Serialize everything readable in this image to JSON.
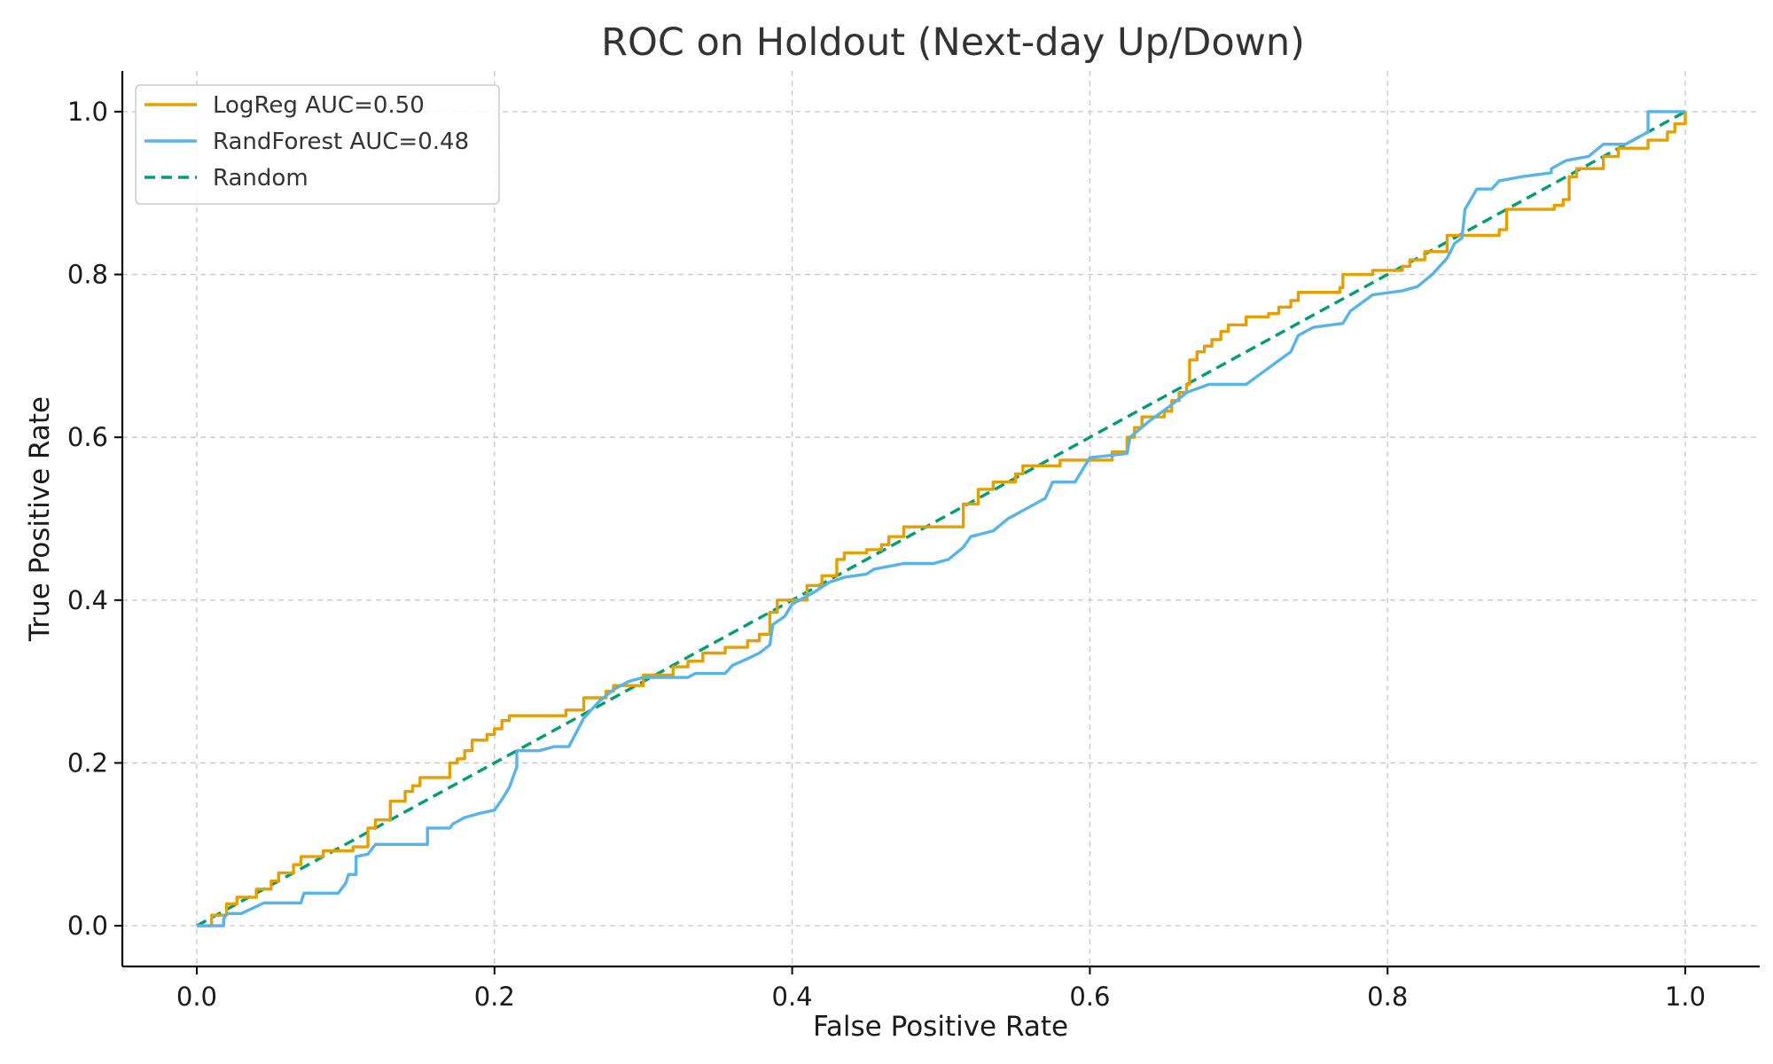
{
  "chart_data": {
    "type": "line",
    "title": "ROC on Holdout (Next-day Up/Down)",
    "xlabel": "False Positive Rate",
    "ylabel": "True Positive Rate",
    "xlim": [
      -0.05,
      1.05
    ],
    "ylim": [
      -0.05,
      1.05
    ],
    "x_ticks": [
      "0.0",
      "0.2",
      "0.4",
      "0.6",
      "0.8",
      "1.0"
    ],
    "y_ticks": [
      "0.0",
      "0.2",
      "0.4",
      "0.6",
      "0.8",
      "1.0"
    ],
    "grid": true,
    "legend_position": "top-left",
    "series": [
      {
        "name": "LogReg AUC=0.50",
        "color": "#E69F00",
        "style": "solid",
        "points": [
          [
            0,
            0
          ],
          [
            0.01,
            0
          ],
          [
            0.01,
            0.013
          ],
          [
            0.02,
            0.013
          ],
          [
            0.02,
            0.027
          ],
          [
            0.027,
            0.027
          ],
          [
            0.027,
            0.035
          ],
          [
            0.04,
            0.035
          ],
          [
            0.04,
            0.045
          ],
          [
            0.05,
            0.045
          ],
          [
            0.05,
            0.055
          ],
          [
            0.055,
            0.055
          ],
          [
            0.055,
            0.065
          ],
          [
            0.065,
            0.065
          ],
          [
            0.065,
            0.075
          ],
          [
            0.07,
            0.075
          ],
          [
            0.07,
            0.085
          ],
          [
            0.085,
            0.085
          ],
          [
            0.085,
            0.092
          ],
          [
            0.105,
            0.092
          ],
          [
            0.105,
            0.097
          ],
          [
            0.115,
            0.097
          ],
          [
            0.115,
            0.12
          ],
          [
            0.12,
            0.12
          ],
          [
            0.12,
            0.13
          ],
          [
            0.13,
            0.13
          ],
          [
            0.13,
            0.153
          ],
          [
            0.14,
            0.153
          ],
          [
            0.14,
            0.165
          ],
          [
            0.145,
            0.165
          ],
          [
            0.145,
            0.172
          ],
          [
            0.15,
            0.172
          ],
          [
            0.15,
            0.182
          ],
          [
            0.17,
            0.182
          ],
          [
            0.17,
            0.2
          ],
          [
            0.175,
            0.2
          ],
          [
            0.175,
            0.205
          ],
          [
            0.18,
            0.205
          ],
          [
            0.18,
            0.215
          ],
          [
            0.185,
            0.215
          ],
          [
            0.185,
            0.228
          ],
          [
            0.195,
            0.228
          ],
          [
            0.195,
            0.235
          ],
          [
            0.2,
            0.235
          ],
          [
            0.2,
            0.242
          ],
          [
            0.205,
            0.242
          ],
          [
            0.205,
            0.252
          ],
          [
            0.21,
            0.252
          ],
          [
            0.21,
            0.258
          ],
          [
            0.248,
            0.258
          ],
          [
            0.248,
            0.265
          ],
          [
            0.26,
            0.265
          ],
          [
            0.26,
            0.28
          ],
          [
            0.275,
            0.28
          ],
          [
            0.275,
            0.288
          ],
          [
            0.28,
            0.288
          ],
          [
            0.28,
            0.295
          ],
          [
            0.3,
            0.295
          ],
          [
            0.3,
            0.308
          ],
          [
            0.32,
            0.308
          ],
          [
            0.32,
            0.318
          ],
          [
            0.33,
            0.318
          ],
          [
            0.33,
            0.325
          ],
          [
            0.34,
            0.325
          ],
          [
            0.34,
            0.335
          ],
          [
            0.355,
            0.335
          ],
          [
            0.355,
            0.342
          ],
          [
            0.37,
            0.342
          ],
          [
            0.37,
            0.35
          ],
          [
            0.378,
            0.35
          ],
          [
            0.378,
            0.358
          ],
          [
            0.385,
            0.358
          ],
          [
            0.385,
            0.385
          ],
          [
            0.39,
            0.385
          ],
          [
            0.39,
            0.4
          ],
          [
            0.41,
            0.4
          ],
          [
            0.41,
            0.418
          ],
          [
            0.42,
            0.418
          ],
          [
            0.42,
            0.43
          ],
          [
            0.43,
            0.43
          ],
          [
            0.43,
            0.45
          ],
          [
            0.435,
            0.45
          ],
          [
            0.435,
            0.458
          ],
          [
            0.45,
            0.458
          ],
          [
            0.45,
            0.462
          ],
          [
            0.46,
            0.462
          ],
          [
            0.46,
            0.468
          ],
          [
            0.465,
            0.468
          ],
          [
            0.465,
            0.478
          ],
          [
            0.475,
            0.478
          ],
          [
            0.475,
            0.49
          ],
          [
            0.515,
            0.49
          ],
          [
            0.515,
            0.518
          ],
          [
            0.525,
            0.518
          ],
          [
            0.525,
            0.536
          ],
          [
            0.535,
            0.536
          ],
          [
            0.535,
            0.545
          ],
          [
            0.55,
            0.545
          ],
          [
            0.55,
            0.555
          ],
          [
            0.555,
            0.555
          ],
          [
            0.555,
            0.565
          ],
          [
            0.58,
            0.565
          ],
          [
            0.58,
            0.572
          ],
          [
            0.615,
            0.572
          ],
          [
            0.615,
            0.582
          ],
          [
            0.625,
            0.582
          ],
          [
            0.625,
            0.6
          ],
          [
            0.63,
            0.6
          ],
          [
            0.63,
            0.612
          ],
          [
            0.635,
            0.612
          ],
          [
            0.635,
            0.625
          ],
          [
            0.65,
            0.625
          ],
          [
            0.65,
            0.632
          ],
          [
            0.655,
            0.632
          ],
          [
            0.655,
            0.645
          ],
          [
            0.66,
            0.645
          ],
          [
            0.66,
            0.655
          ],
          [
            0.665,
            0.655
          ],
          [
            0.665,
            0.665
          ],
          [
            0.667,
            0.665
          ],
          [
            0.667,
            0.695
          ],
          [
            0.672,
            0.695
          ],
          [
            0.672,
            0.705
          ],
          [
            0.677,
            0.705
          ],
          [
            0.677,
            0.712
          ],
          [
            0.682,
            0.712
          ],
          [
            0.682,
            0.72
          ],
          [
            0.688,
            0.72
          ],
          [
            0.688,
            0.73
          ],
          [
            0.693,
            0.73
          ],
          [
            0.693,
            0.738
          ],
          [
            0.705,
            0.738
          ],
          [
            0.705,
            0.748
          ],
          [
            0.72,
            0.748
          ],
          [
            0.72,
            0.752
          ],
          [
            0.727,
            0.752
          ],
          [
            0.727,
            0.76
          ],
          [
            0.735,
            0.76
          ],
          [
            0.735,
            0.768
          ],
          [
            0.74,
            0.768
          ],
          [
            0.74,
            0.778
          ],
          [
            0.768,
            0.778
          ],
          [
            0.768,
            0.784
          ],
          [
            0.77,
            0.784
          ],
          [
            0.77,
            0.8
          ],
          [
            0.79,
            0.8
          ],
          [
            0.79,
            0.805
          ],
          [
            0.81,
            0.805
          ],
          [
            0.81,
            0.81
          ],
          [
            0.815,
            0.81
          ],
          [
            0.815,
            0.818
          ],
          [
            0.825,
            0.818
          ],
          [
            0.825,
            0.828
          ],
          [
            0.84,
            0.828
          ],
          [
            0.84,
            0.848
          ],
          [
            0.86,
            0.848
          ],
          [
            0.86,
            0.848
          ],
          [
            0.875,
            0.848
          ],
          [
            0.875,
            0.855
          ],
          [
            0.88,
            0.855
          ],
          [
            0.88,
            0.88
          ],
          [
            0.912,
            0.88
          ],
          [
            0.912,
            0.885
          ],
          [
            0.918,
            0.885
          ],
          [
            0.918,
            0.892
          ],
          [
            0.922,
            0.892
          ],
          [
            0.922,
            0.92
          ],
          [
            0.927,
            0.92
          ],
          [
            0.927,
            0.93
          ],
          [
            0.945,
            0.93
          ],
          [
            0.945,
            0.945
          ],
          [
            0.955,
            0.945
          ],
          [
            0.955,
            0.955
          ],
          [
            0.975,
            0.955
          ],
          [
            0.975,
            0.965
          ],
          [
            0.988,
            0.965
          ],
          [
            0.988,
            0.975
          ],
          [
            0.993,
            0.975
          ],
          [
            0.993,
            0.985
          ],
          [
            1.0,
            0.985
          ],
          [
            1.0,
            1.0
          ]
        ]
      },
      {
        "name": "RandForest AUC=0.48",
        "color": "#56B4E9",
        "style": "solid",
        "points": [
          [
            0,
            0
          ],
          [
            0.018,
            0
          ],
          [
            0.018,
            0.008
          ],
          [
            0.02,
            0.015
          ],
          [
            0.03,
            0.015
          ],
          [
            0.045,
            0.028
          ],
          [
            0.07,
            0.028
          ],
          [
            0.072,
            0.04
          ],
          [
            0.095,
            0.04
          ],
          [
            0.1,
            0.052
          ],
          [
            0.102,
            0.063
          ],
          [
            0.107,
            0.063
          ],
          [
            0.107,
            0.085
          ],
          [
            0.115,
            0.088
          ],
          [
            0.12,
            0.1
          ],
          [
            0.155,
            0.1
          ],
          [
            0.155,
            0.12
          ],
          [
            0.17,
            0.12
          ],
          [
            0.172,
            0.125
          ],
          [
            0.18,
            0.133
          ],
          [
            0.19,
            0.138
          ],
          [
            0.2,
            0.142
          ],
          [
            0.205,
            0.155
          ],
          [
            0.21,
            0.17
          ],
          [
            0.215,
            0.195
          ],
          [
            0.215,
            0.215
          ],
          [
            0.23,
            0.215
          ],
          [
            0.24,
            0.22
          ],
          [
            0.25,
            0.22
          ],
          [
            0.26,
            0.255
          ],
          [
            0.27,
            0.275
          ],
          [
            0.28,
            0.29
          ],
          [
            0.29,
            0.3
          ],
          [
            0.3,
            0.305
          ],
          [
            0.33,
            0.305
          ],
          [
            0.335,
            0.31
          ],
          [
            0.355,
            0.31
          ],
          [
            0.36,
            0.32
          ],
          [
            0.37,
            0.328
          ],
          [
            0.378,
            0.335
          ],
          [
            0.385,
            0.345
          ],
          [
            0.387,
            0.37
          ],
          [
            0.395,
            0.38
          ],
          [
            0.4,
            0.395
          ],
          [
            0.41,
            0.405
          ],
          [
            0.415,
            0.41
          ],
          [
            0.425,
            0.422
          ],
          [
            0.435,
            0.428
          ],
          [
            0.45,
            0.432
          ],
          [
            0.455,
            0.438
          ],
          [
            0.475,
            0.445
          ],
          [
            0.495,
            0.445
          ],
          [
            0.505,
            0.45
          ],
          [
            0.515,
            0.465
          ],
          [
            0.52,
            0.478
          ],
          [
            0.535,
            0.485
          ],
          [
            0.545,
            0.5
          ],
          [
            0.555,
            0.51
          ],
          [
            0.57,
            0.525
          ],
          [
            0.575,
            0.545
          ],
          [
            0.59,
            0.545
          ],
          [
            0.6,
            0.575
          ],
          [
            0.625,
            0.58
          ],
          [
            0.627,
            0.6
          ],
          [
            0.64,
            0.62
          ],
          [
            0.655,
            0.64
          ],
          [
            0.665,
            0.655
          ],
          [
            0.68,
            0.665
          ],
          [
            0.705,
            0.665
          ],
          [
            0.72,
            0.685
          ],
          [
            0.735,
            0.705
          ],
          [
            0.74,
            0.725
          ],
          [
            0.75,
            0.735
          ],
          [
            0.77,
            0.74
          ],
          [
            0.775,
            0.755
          ],
          [
            0.79,
            0.775
          ],
          [
            0.81,
            0.78
          ],
          [
            0.82,
            0.785
          ],
          [
            0.83,
            0.8
          ],
          [
            0.84,
            0.82
          ],
          [
            0.845,
            0.838
          ],
          [
            0.85,
            0.845
          ],
          [
            0.852,
            0.88
          ],
          [
            0.86,
            0.905
          ],
          [
            0.87,
            0.905
          ],
          [
            0.875,
            0.915
          ],
          [
            0.89,
            0.92
          ],
          [
            0.91,
            0.925
          ],
          [
            0.91,
            0.93
          ],
          [
            0.92,
            0.94
          ],
          [
            0.935,
            0.945
          ],
          [
            0.945,
            0.96
          ],
          [
            0.96,
            0.96
          ],
          [
            0.965,
            0.965
          ],
          [
            0.975,
            0.975
          ],
          [
            0.975,
            1.0
          ],
          [
            1.0,
            1.0
          ]
        ]
      },
      {
        "name": "Random",
        "color": "#009E73",
        "style": "dashed",
        "points": [
          [
            0,
            0
          ],
          [
            1,
            1
          ]
        ]
      }
    ]
  }
}
